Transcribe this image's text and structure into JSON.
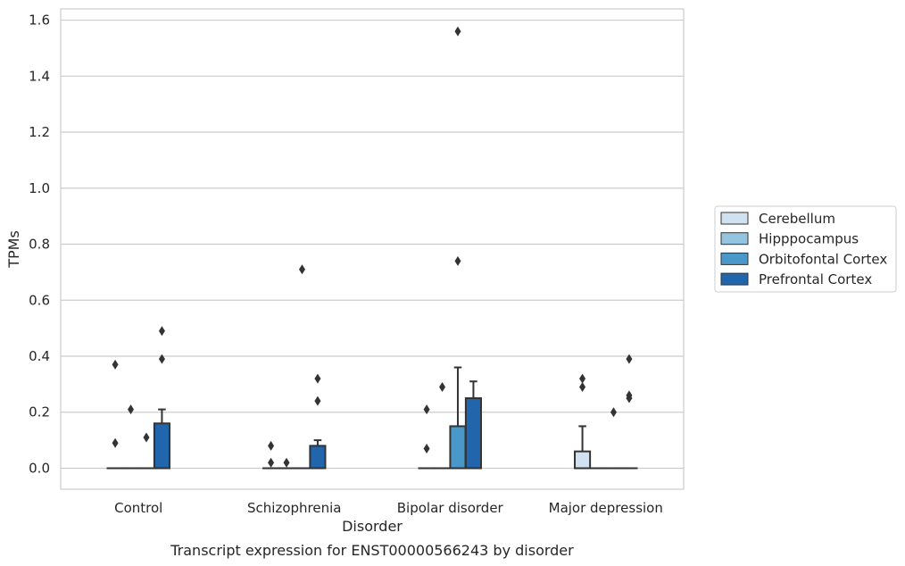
{
  "chart_data": {
    "type": "box",
    "caption": "Transcript expression for ENST00000566243 by disorder",
    "xlabel": "Disorder",
    "ylabel": "TPMs",
    "ylim": [
      -0.075,
      1.64
    ],
    "yticks": [
      "0.0",
      "0.2",
      "0.4",
      "0.6",
      "0.8",
      "1.0",
      "1.2",
      "1.4",
      "1.6"
    ],
    "grid": true,
    "legend_position": "right",
    "categories": [
      "Control",
      "Schizophrenia",
      "Bipolar disorder",
      "Major depression"
    ],
    "series": [
      {
        "name": "Cerebellum",
        "color": "#d0e1f2",
        "boxes": [
          {
            "q1": 0,
            "median": 0,
            "q3": 0,
            "whisker_low": 0,
            "whisker_high": 0,
            "outliers": [
              0.09,
              0.37
            ]
          },
          {
            "q1": 0,
            "median": 0,
            "q3": 0,
            "whisker_low": 0,
            "whisker_high": 0,
            "outliers": [
              0.02,
              0.08
            ]
          },
          {
            "q1": 0,
            "median": 0,
            "q3": 0,
            "whisker_low": 0,
            "whisker_high": 0,
            "outliers": [
              0.07,
              0.21
            ]
          },
          {
            "q1": 0,
            "median": 0,
            "q3": 0.06,
            "whisker_low": 0,
            "whisker_high": 0.15,
            "outliers": [
              0.29,
              0.32
            ]
          }
        ]
      },
      {
        "name": "Hipppocampus",
        "color": "#94c4df",
        "boxes": [
          {
            "q1": 0,
            "median": 0,
            "q3": 0,
            "whisker_low": 0,
            "whisker_high": 0,
            "outliers": [
              0.21
            ]
          },
          {
            "q1": 0,
            "median": 0,
            "q3": 0,
            "whisker_low": 0,
            "whisker_high": 0,
            "outliers": [
              0.02
            ]
          },
          {
            "q1": 0,
            "median": 0,
            "q3": 0,
            "whisker_low": 0,
            "whisker_high": 0,
            "outliers": [
              0.29
            ]
          },
          {
            "q1": 0,
            "median": 0,
            "q3": 0,
            "whisker_low": 0,
            "whisker_high": 0,
            "outliers": []
          }
        ]
      },
      {
        "name": "Orbitofontal Cortex",
        "color": "#4a98c9",
        "boxes": [
          {
            "q1": 0,
            "median": 0,
            "q3": 0,
            "whisker_low": 0,
            "whisker_high": 0,
            "outliers": [
              0.11
            ]
          },
          {
            "q1": 0,
            "median": 0,
            "q3": 0,
            "whisker_low": 0,
            "whisker_high": 0,
            "outliers": [
              0.71
            ]
          },
          {
            "q1": 0,
            "median": 0,
            "q3": 0.15,
            "whisker_low": 0,
            "whisker_high": 0.36,
            "outliers": [
              0.74,
              1.56
            ]
          },
          {
            "q1": 0,
            "median": 0,
            "q3": 0,
            "whisker_low": 0,
            "whisker_high": 0,
            "outliers": [
              0.2
            ]
          }
        ]
      },
      {
        "name": "Prefrontal Cortex",
        "color": "#2166ac",
        "boxes": [
          {
            "q1": 0,
            "median": 0,
            "q3": 0.16,
            "whisker_low": 0,
            "whisker_high": 0.21,
            "outliers": [
              0.39,
              0.49
            ]
          },
          {
            "q1": 0,
            "median": 0,
            "q3": 0.08,
            "whisker_low": 0,
            "whisker_high": 0.1,
            "outliers": [
              0.24,
              0.32
            ]
          },
          {
            "q1": 0,
            "median": 0,
            "q3": 0.25,
            "whisker_low": 0,
            "whisker_high": 0.31,
            "outliers": []
          },
          {
            "q1": 0,
            "median": 0,
            "q3": 0,
            "whisker_low": 0,
            "whisker_high": 0,
            "outliers": [
              0.25,
              0.26,
              0.39
            ]
          }
        ]
      }
    ]
  }
}
